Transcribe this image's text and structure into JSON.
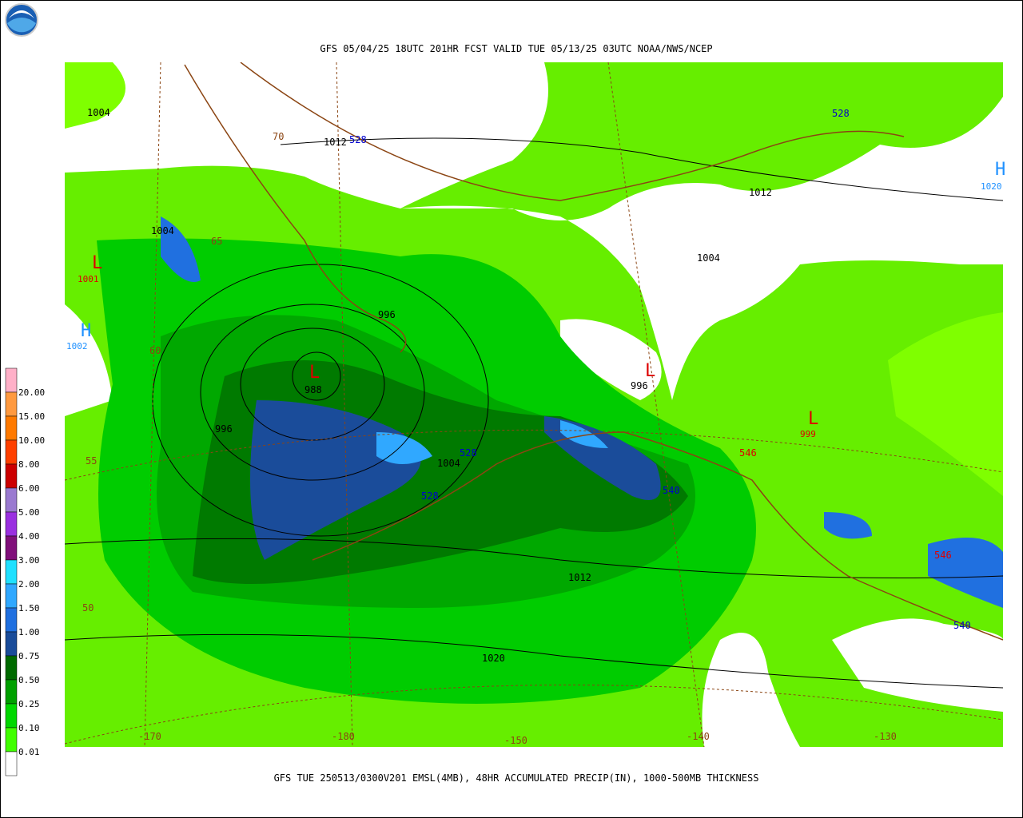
{
  "header": {
    "title": "GFS 05/04/25 18UTC 201HR FCST VALID TUE 05/13/25 03UTC NOAA/NWS/NCEP"
  },
  "footer": {
    "caption": "GFS TUE 250513/0300V201 EMSL(4MB), 48HR ACCUMULATED PRECIP(IN), 1000-500MB THICKNESS"
  },
  "legend": {
    "items": [
      {
        "label": "20.00",
        "color": "#ffb0c8"
      },
      {
        "label": "15.00",
        "color": "#ff9a40"
      },
      {
        "label": "10.00",
        "color": "#ff7a00"
      },
      {
        "label": "8.00",
        "color": "#ff4000"
      },
      {
        "label": "6.00",
        "color": "#cc0000"
      },
      {
        "label": "5.00",
        "color": "#9a7ad0"
      },
      {
        "label": "4.00",
        "color": "#9a30e0"
      },
      {
        "label": "3.00",
        "color": "#80107a"
      },
      {
        "label": "2.00",
        "color": "#20e0ff"
      },
      {
        "label": "1.50",
        "color": "#30a8ff"
      },
      {
        "label": "1.00",
        "color": "#2070e0"
      },
      {
        "label": "0.75",
        "color": "#1a4c9a"
      },
      {
        "label": "0.50",
        "color": "#006a00"
      },
      {
        "label": "0.25",
        "color": "#00a000"
      },
      {
        "label": "0.10",
        "color": "#00d800"
      },
      {
        "label": "0.01",
        "color": "#40ff00"
      }
    ],
    "below_color": "#ffffff"
  },
  "map": {
    "labels": [
      {
        "text": "1004",
        "color": "#000000"
      },
      {
        "text": "1012",
        "color": "#000000"
      },
      {
        "text": "528",
        "color": "#0000cc"
      },
      {
        "text": "528",
        "color": "#0000cc"
      },
      {
        "text": "1012",
        "color": "#000000"
      },
      {
        "text": "H",
        "color": "#1e90ff"
      },
      {
        "text": "1020",
        "color": "#1e90ff"
      },
      {
        "text": "1004",
        "color": "#000000"
      },
      {
        "text": "L",
        "color": "#dd0000"
      },
      {
        "text": "1001",
        "color": "#dd0000"
      },
      {
        "text": "1004",
        "color": "#000000"
      },
      {
        "text": "996",
        "color": "#000000"
      },
      {
        "text": "H",
        "color": "#1e90ff"
      },
      {
        "text": "1002",
        "color": "#1e90ff"
      },
      {
        "text": "60",
        "color": "#8b4513"
      },
      {
        "text": "L",
        "color": "#dd0000"
      },
      {
        "text": "988",
        "color": "#000000"
      },
      {
        "text": "996",
        "color": "#000000"
      },
      {
        "text": "L",
        "color": "#dd0000"
      },
      {
        "text": "996",
        "color": "#000000"
      },
      {
        "text": "L",
        "color": "#dd0000"
      },
      {
        "text": "999",
        "color": "#dd0000"
      },
      {
        "text": "1004",
        "color": "#000000"
      },
      {
        "text": "528",
        "color": "#0000cc"
      },
      {
        "text": "528",
        "color": "#0000cc"
      },
      {
        "text": "540",
        "color": "#0000cc"
      },
      {
        "text": "546",
        "color": "#dd0000"
      },
      {
        "text": "55",
        "color": "#8b4513"
      },
      {
        "text": "546",
        "color": "#dd0000"
      },
      {
        "text": "1012",
        "color": "#000000"
      },
      {
        "text": "50",
        "color": "#8b4513"
      },
      {
        "text": "540",
        "color": "#0000cc"
      },
      {
        "text": "1020",
        "color": "#000000"
      },
      {
        "text": "-170",
        "color": "#8b4513"
      },
      {
        "text": "-180",
        "color": "#8b4513"
      },
      {
        "text": "-150",
        "color": "#8b4513"
      },
      {
        "text": "-140",
        "color": "#8b4513"
      },
      {
        "text": "-130",
        "color": "#8b4513"
      },
      {
        "text": "70",
        "color": "#8b4513"
      },
      {
        "text": "65",
        "color": "#8b4513"
      }
    ]
  }
}
